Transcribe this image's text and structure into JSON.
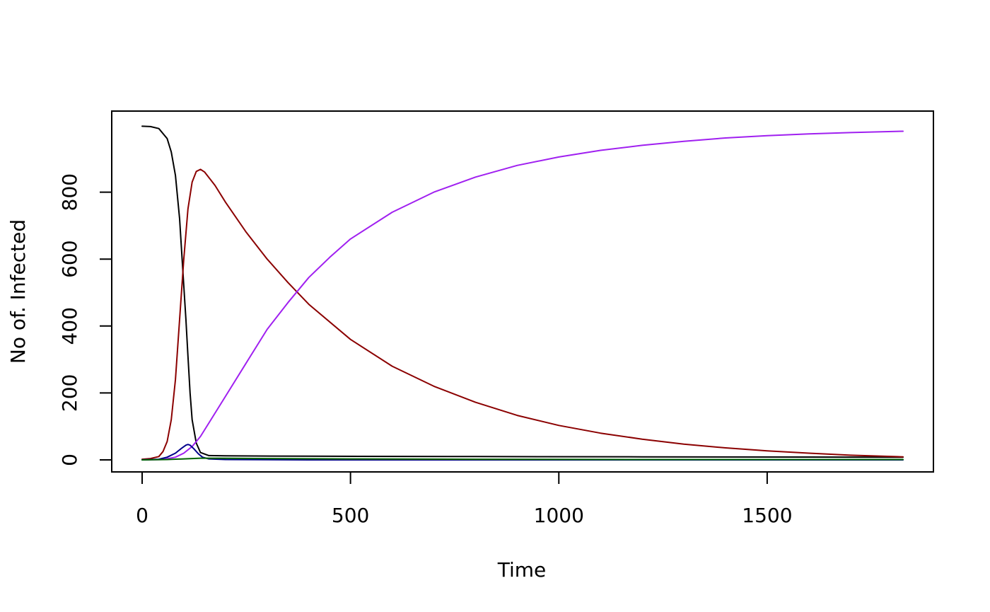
{
  "chart_data": {
    "type": "line",
    "title": "",
    "xlabel": "Time",
    "ylabel": "No of. Infected",
    "xlim": [
      0,
      1826
    ],
    "ylim": [
      0,
      1000
    ],
    "xticks": [
      0,
      500,
      1000,
      1500
    ],
    "xtick_labels": [
      "0",
      "500",
      "1000",
      "1500"
    ],
    "yticks": [
      0,
      200,
      400,
      600,
      800
    ],
    "ytick_labels": [
      "0",
      "200",
      "400",
      "600",
      "800"
    ],
    "grid": false,
    "legend": "none",
    "series": [
      {
        "color": "#000000",
        "points": [
          [
            0,
            997
          ],
          [
            20,
            996
          ],
          [
            40,
            990
          ],
          [
            60,
            960
          ],
          [
            70,
            920
          ],
          [
            80,
            850
          ],
          [
            90,
            720
          ],
          [
            100,
            520
          ],
          [
            105,
            420
          ],
          [
            110,
            310
          ],
          [
            115,
            200
          ],
          [
            120,
            120
          ],
          [
            130,
            50
          ],
          [
            140,
            22
          ],
          [
            160,
            13
          ],
          [
            200,
            12
          ],
          [
            400,
            11
          ],
          [
            800,
            10
          ],
          [
            1200,
            9
          ],
          [
            1826,
            8
          ]
        ]
      },
      {
        "color": "#8B0000",
        "points": [
          [
            0,
            2
          ],
          [
            20,
            4
          ],
          [
            40,
            10
          ],
          [
            50,
            25
          ],
          [
            60,
            55
          ],
          [
            70,
            120
          ],
          [
            80,
            240
          ],
          [
            90,
            420
          ],
          [
            100,
            600
          ],
          [
            110,
            750
          ],
          [
            120,
            830
          ],
          [
            130,
            862
          ],
          [
            140,
            868
          ],
          [
            150,
            860
          ],
          [
            175,
            820
          ],
          [
            200,
            770
          ],
          [
            250,
            680
          ],
          [
            300,
            600
          ],
          [
            350,
            530
          ],
          [
            400,
            465
          ],
          [
            500,
            360
          ],
          [
            600,
            280
          ],
          [
            700,
            220
          ],
          [
            800,
            172
          ],
          [
            900,
            133
          ],
          [
            1000,
            103
          ],
          [
            1100,
            80
          ],
          [
            1200,
            62
          ],
          [
            1300,
            47
          ],
          [
            1400,
            36
          ],
          [
            1500,
            27
          ],
          [
            1600,
            20
          ],
          [
            1700,
            14
          ],
          [
            1826,
            9
          ]
        ]
      },
      {
        "color": "#A020F0",
        "points": [
          [
            0,
            0
          ],
          [
            50,
            1
          ],
          [
            80,
            8
          ],
          [
            100,
            20
          ],
          [
            120,
            40
          ],
          [
            140,
            70
          ],
          [
            160,
            110
          ],
          [
            200,
            190
          ],
          [
            250,
            290
          ],
          [
            300,
            390
          ],
          [
            350,
            470
          ],
          [
            400,
            545
          ],
          [
            450,
            605
          ],
          [
            500,
            660
          ],
          [
            600,
            740
          ],
          [
            700,
            800
          ],
          [
            800,
            845
          ],
          [
            900,
            880
          ],
          [
            1000,
            905
          ],
          [
            1100,
            925
          ],
          [
            1200,
            940
          ],
          [
            1300,
            952
          ],
          [
            1400,
            962
          ],
          [
            1500,
            969
          ],
          [
            1600,
            974
          ],
          [
            1700,
            978
          ],
          [
            1826,
            982
          ]
        ]
      },
      {
        "color": "#00008B",
        "points": [
          [
            0,
            0
          ],
          [
            40,
            2
          ],
          [
            60,
            8
          ],
          [
            80,
            20
          ],
          [
            95,
            35
          ],
          [
            105,
            44
          ],
          [
            110,
            46
          ],
          [
            115,
            44
          ],
          [
            125,
            32
          ],
          [
            135,
            18
          ],
          [
            145,
            8
          ],
          [
            160,
            3
          ],
          [
            200,
            1
          ],
          [
            400,
            0
          ],
          [
            1826,
            0
          ]
        ]
      },
      {
        "color": "#006400",
        "points": [
          [
            0,
            0
          ],
          [
            60,
            1
          ],
          [
            100,
            3
          ],
          [
            140,
            5
          ],
          [
            180,
            5
          ],
          [
            300,
            4
          ],
          [
            500,
            3
          ],
          [
            800,
            2
          ],
          [
            1200,
            1
          ],
          [
            1826,
            1
          ]
        ]
      }
    ]
  }
}
